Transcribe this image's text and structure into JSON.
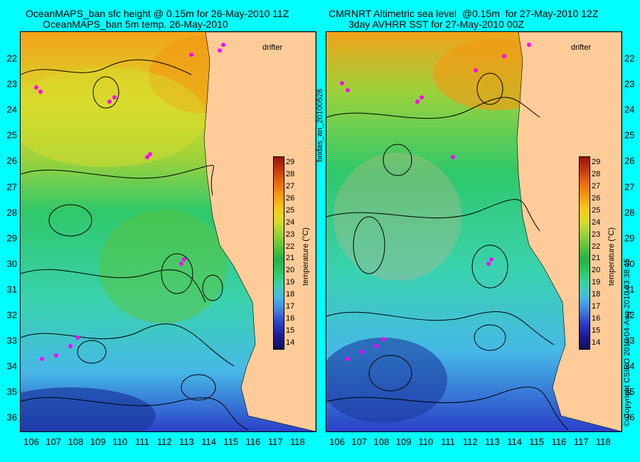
{
  "left_panel": {
    "title_line1": "OceanMAPS_ban sfc height @ 0.15m for 26-May-2010 11Z",
    "title_line2": "OceanMAPS_ban 5m temp. 26-May-2010",
    "drifter_label": "drifter"
  },
  "right_panel": {
    "title_line1": "CMRNRT Altimetric sea level  @0.15m  for 27-May-2010 12Z",
    "title_line2": "3day AVHRR SST for 27-May-2010 00Z",
    "drifter_label": "drifter"
  },
  "y_axis_labels": [
    "22",
    "23",
    "24",
    "25",
    "26",
    "27",
    "28",
    "29",
    "30",
    "31",
    "32",
    "33",
    "34",
    "35",
    "36"
  ],
  "x_axis_labels": [
    "106",
    "107",
    "108",
    "109",
    "110",
    "111",
    "112",
    "113",
    "114",
    "115",
    "116",
    "117",
    "118"
  ],
  "colorbar": {
    "ticks": [
      "29",
      "28",
      "27",
      "26",
      "25",
      "24",
      "23",
      "22",
      "21",
      "20",
      "19",
      "18",
      "17",
      "16",
      "15",
      "14"
    ],
    "title": "temperature (°C)",
    "colors": [
      "#10105a",
      "#1a1a9a",
      "#2a40c8",
      "#3f7fe0",
      "#46b8e6",
      "#3ad2b0",
      "#2fc86a",
      "#20b24a",
      "#5cc43a",
      "#9bd23c",
      "#d8dc2c",
      "#f6c81a",
      "#f29a12",
      "#e66a10",
      "#c43a0e",
      "#9a1408"
    ]
  },
  "left_vertical_text": "bodas_an_20100526",
  "right_vertical_text": "© Copyright CSIRO 2010   04-Aug-2010 03:38:45"
}
